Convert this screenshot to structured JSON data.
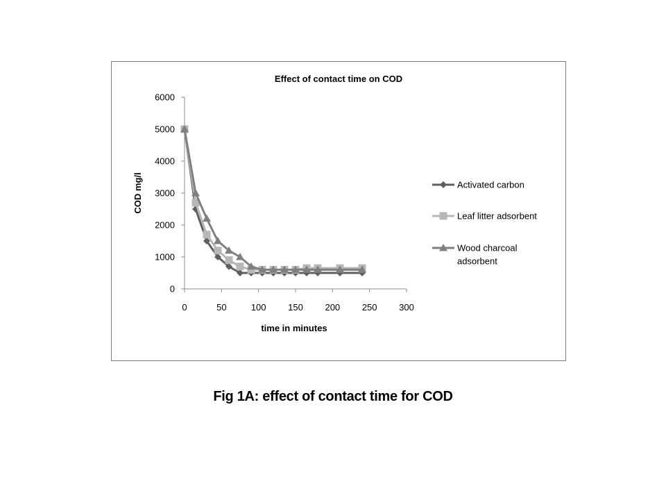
{
  "caption": "Fig 1A: effect of contact time for COD",
  "chart_data": {
    "type": "line",
    "title": "Effect of contact  time on COD",
    "xlabel": "time in minutes",
    "ylabel": "COD mg/l",
    "xlim": [
      0,
      300
    ],
    "ylim": [
      0,
      6000
    ],
    "x_ticks": [
      0,
      50,
      100,
      150,
      200,
      250,
      300
    ],
    "y_ticks": [
      0,
      1000,
      2000,
      3000,
      4000,
      5000,
      6000
    ],
    "grid": false,
    "legend_position": "right",
    "series": [
      {
        "name": "Activated carbon",
        "marker": "diamond",
        "color": "#5f5f5f",
        "x": [
          0,
          15,
          30,
          45,
          60,
          75,
          90,
          105,
          120,
          135,
          150,
          165,
          180,
          210,
          240
        ],
        "y": [
          5000,
          2500,
          1500,
          1000,
          700,
          500,
          500,
          500,
          500,
          500,
          500,
          500,
          500,
          500,
          500
        ]
      },
      {
        "name": "Leaf litter adsorbent",
        "marker": "square",
        "color": "#b7b7b7",
        "x": [
          0,
          15,
          30,
          45,
          60,
          75,
          90,
          105,
          120,
          135,
          150,
          165,
          180,
          210,
          240
        ],
        "y": [
          5000,
          2700,
          1700,
          1200,
          900,
          700,
          600,
          600,
          600,
          600,
          600,
          650,
          650,
          650,
          650
        ]
      },
      {
        "name": "Wood charcoal adsorbent",
        "marker": "triangle",
        "color": "#7f7f7f",
        "x": [
          0,
          15,
          30,
          45,
          60,
          75,
          90,
          105,
          120,
          135,
          150,
          165,
          180,
          210,
          240
        ],
        "y": [
          5000,
          3000,
          2200,
          1500,
          1200,
          1000,
          700,
          600,
          600,
          600,
          600,
          600,
          600,
          600,
          600
        ]
      }
    ]
  }
}
